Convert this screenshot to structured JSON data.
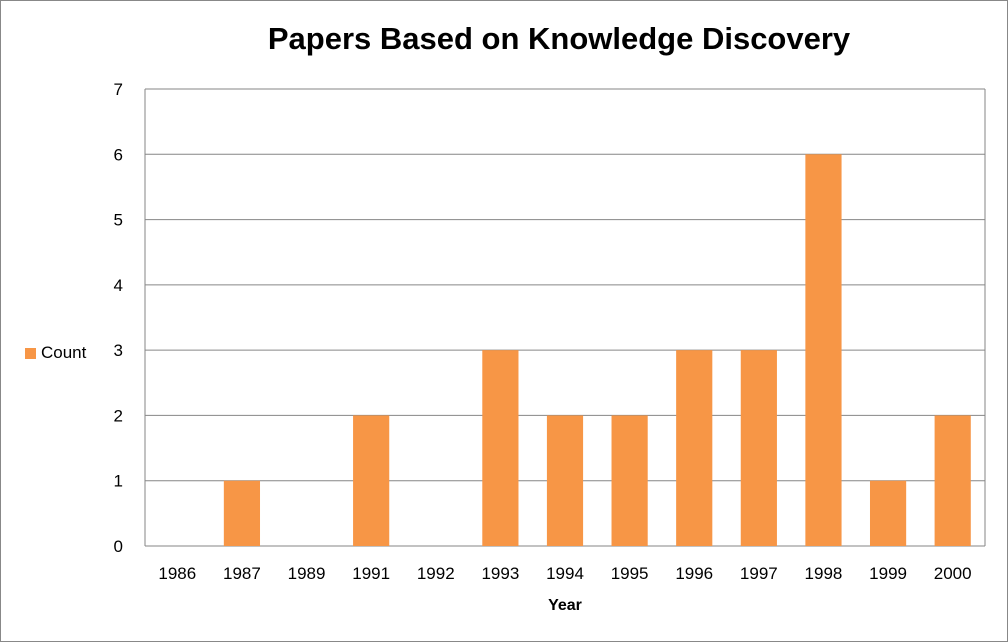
{
  "chart_data": {
    "type": "bar",
    "title": "Papers Based on Knowledge Discovery",
    "xlabel": "Year",
    "ylabel": "",
    "categories": [
      "1986",
      "1987",
      "1989",
      "1991",
      "1992",
      "1993",
      "1994",
      "1995",
      "1996",
      "1997",
      "1998",
      "1999",
      "2000"
    ],
    "series": [
      {
        "name": "Count",
        "values": [
          0,
          1,
          0,
          2,
          0,
          3,
          2,
          2,
          3,
          3,
          6,
          1,
          2
        ]
      }
    ],
    "ylim": [
      0,
      7
    ],
    "yticks": [
      "0",
      "1",
      "2",
      "3",
      "4",
      "5",
      "6",
      "7"
    ],
    "grid": true,
    "legend_position": "left",
    "bar_color": "#F79646",
    "grid_color": "#868686",
    "axis_color": "#868686"
  }
}
